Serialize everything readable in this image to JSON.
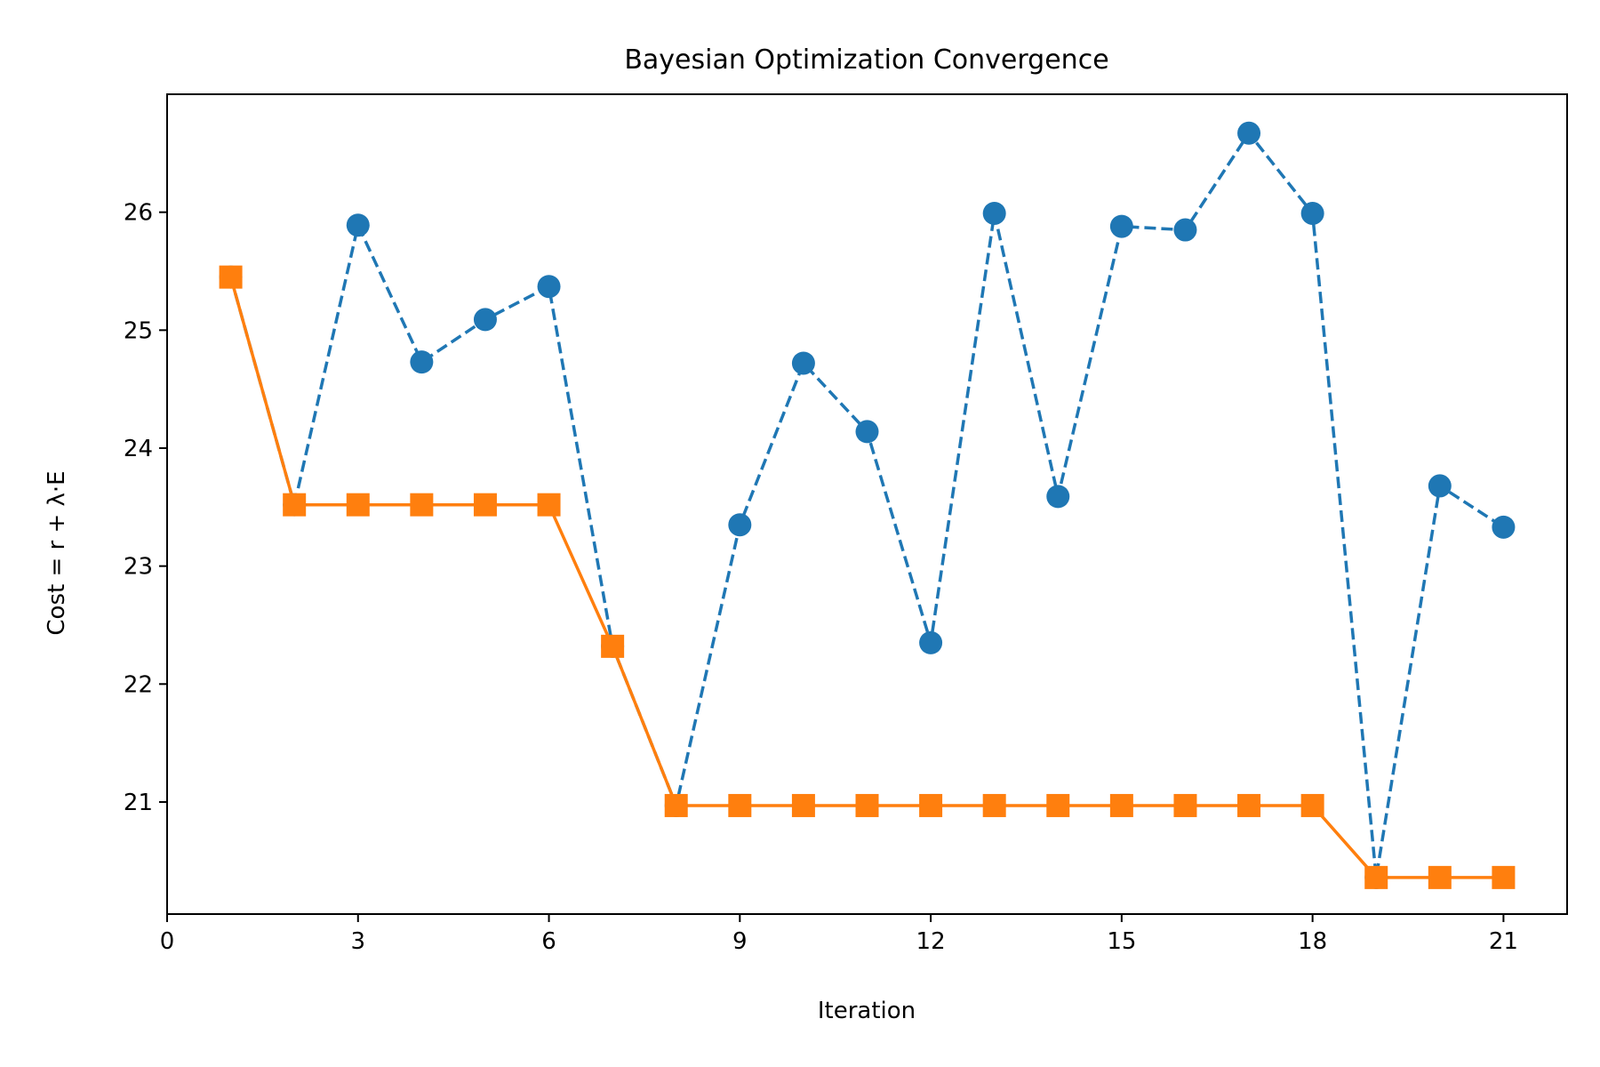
{
  "chart_data": {
    "type": "line",
    "title": "Bayesian Optimization Convergence",
    "xlabel": "Iteration",
    "ylabel": "Cost = r + λ·E",
    "xlim": [
      0,
      22
    ],
    "ylim": [
      20.05,
      27.0
    ],
    "x_ticks": [
      0,
      3,
      6,
      9,
      12,
      15,
      18,
      21
    ],
    "y_ticks": [
      21,
      22,
      23,
      24,
      25,
      26
    ],
    "grid": false,
    "legend": "none",
    "x": [
      1,
      2,
      3,
      4,
      5,
      6,
      7,
      8,
      9,
      10,
      11,
      12,
      13,
      14,
      15,
      16,
      17,
      18,
      19,
      20,
      21
    ],
    "series": [
      {
        "color": "#1f77b4",
        "line_style": "dashed",
        "marker": "circle",
        "values": [
          25.45,
          23.52,
          25.89,
          24.73,
          25.09,
          25.37,
          22.32,
          20.97,
          23.35,
          24.72,
          24.14,
          22.35,
          25.99,
          23.59,
          25.88,
          25.85,
          26.67,
          25.99,
          20.36,
          23.68,
          23.33
        ]
      },
      {
        "color": "#ff7f0e",
        "line_style": "solid",
        "marker": "square",
        "values": [
          25.45,
          23.52,
          23.52,
          23.52,
          23.52,
          23.52,
          22.32,
          20.97,
          20.97,
          20.97,
          20.97,
          20.97,
          20.97,
          20.97,
          20.97,
          20.97,
          20.97,
          20.97,
          20.36,
          20.36,
          20.36
        ]
      }
    ]
  }
}
